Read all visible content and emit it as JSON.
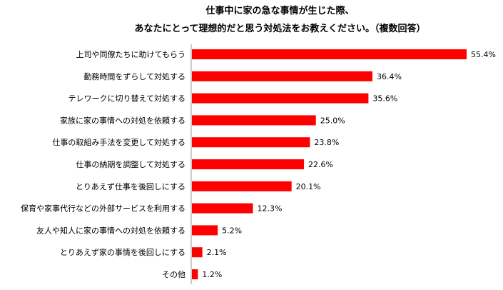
{
  "chart_data": {
    "type": "bar",
    "orientation": "horizontal",
    "title_line1": "仕事中に家の急な事情が生じた際、",
    "title_line2": "あなたにとって理想的だと思う対処法をお教えください。（複数回答）",
    "categories": [
      "上司や同僚たちに助けてもらう",
      "勤務時間をずらして対処する",
      "テレワークに切り替えて対処する",
      "家族に家の事情への対処を依頼する",
      "仕事の取組み手法を変更して対処する",
      "仕事の納期を調整して対処する",
      "とりあえず仕事を後回しにする",
      "保育や家事代行などの外部サービスを利用する",
      "友人や知人に家の事情への対処を依頼する",
      "とりあえず家の事情を後回しにする",
      "その他"
    ],
    "values": [
      55.4,
      36.4,
      35.6,
      25.0,
      23.8,
      22.6,
      20.1,
      12.3,
      5.2,
      2.1,
      1.2
    ],
    "value_labels": [
      "55.4%",
      "36.4%",
      "35.6%",
      "25.0%",
      "23.8%",
      "22.6%",
      "20.1%",
      "12.3%",
      "5.2%",
      "2.1%",
      "1.2%"
    ],
    "bar_color": "#ff0000",
    "xlim": [
      0,
      60
    ],
    "grid": false,
    "legend": "none"
  }
}
